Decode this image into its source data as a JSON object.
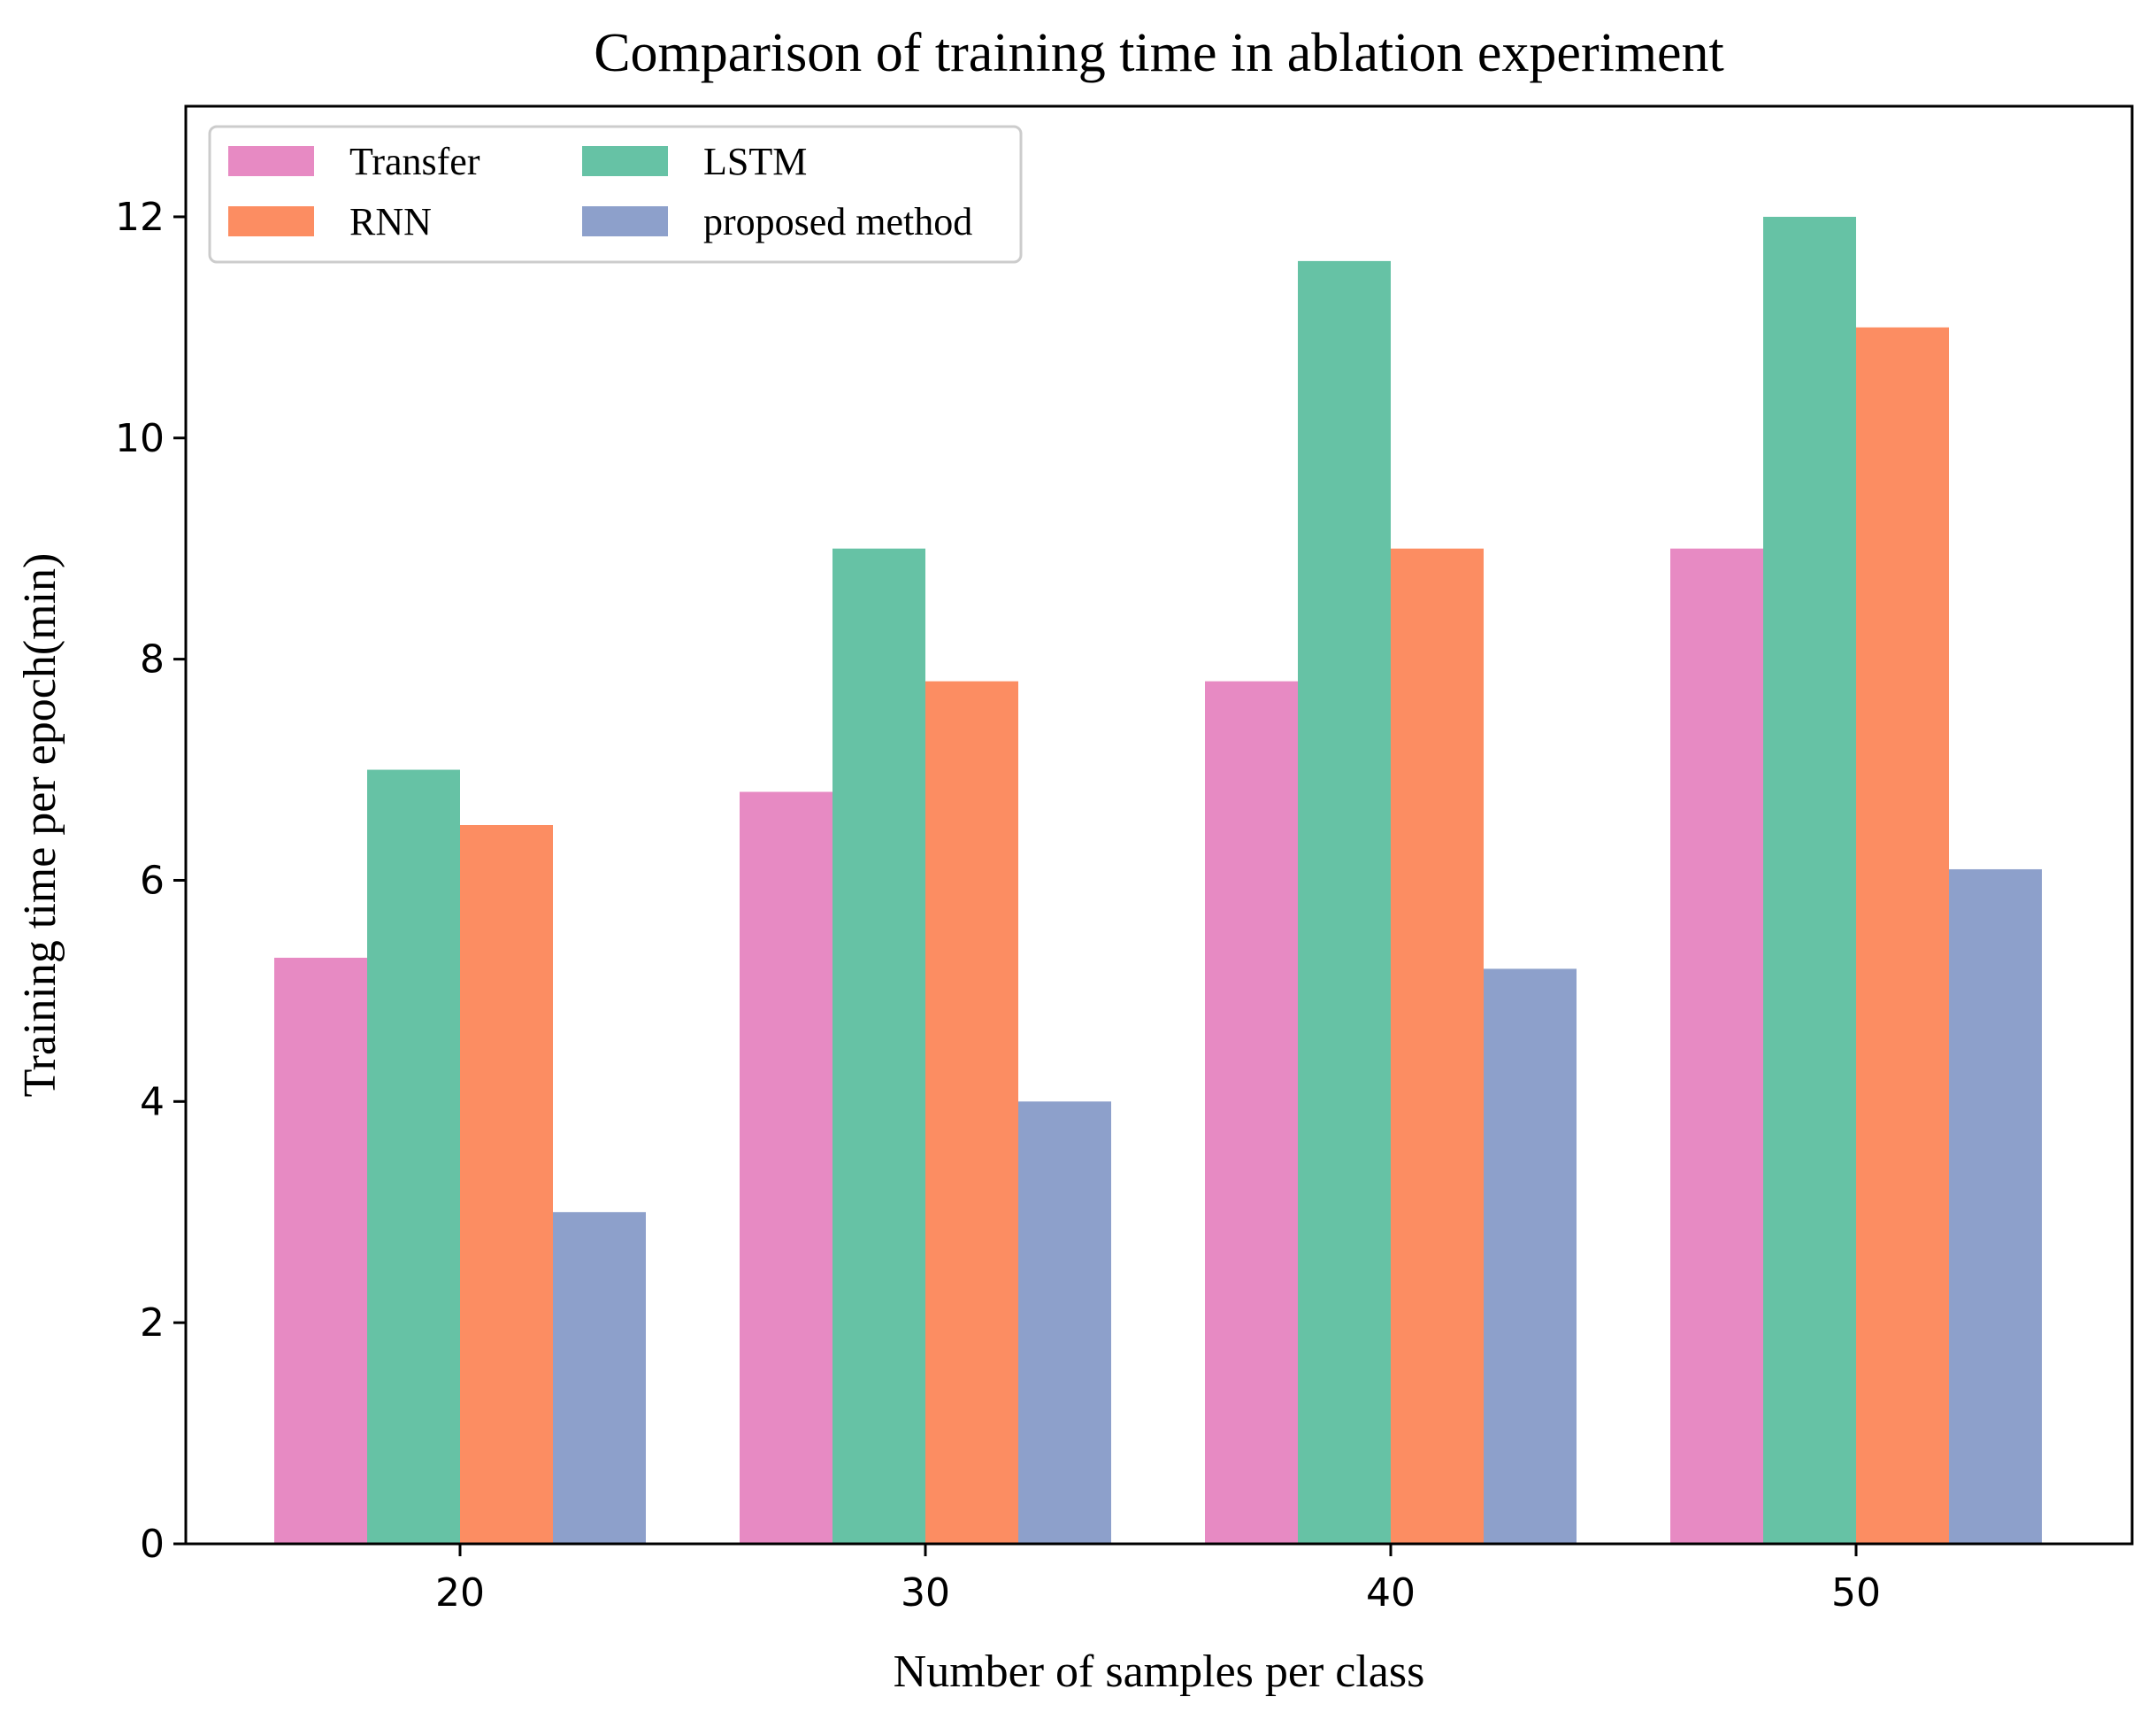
{
  "chart_data": {
    "type": "bar",
    "title": "Comparison of training time in ablation experiment",
    "xlabel": "Number of samples per class",
    "ylabel": "Training time per epoch(min)",
    "categories": [
      "20",
      "30",
      "40",
      "50"
    ],
    "ylim": [
      0,
      13
    ],
    "yticks": [
      0,
      2,
      4,
      6,
      8,
      10,
      12
    ],
    "grid": false,
    "legend_position": "top-left",
    "series": [
      {
        "name": "Transfer",
        "color": "#e78ac3",
        "values": [
          5.3,
          6.8,
          7.8,
          9.0
        ]
      },
      {
        "name": "LSTM",
        "color": "#66c2a5",
        "values": [
          7.0,
          9.0,
          11.6,
          12.0
        ]
      },
      {
        "name": "RNN",
        "color": "#fc8d62",
        "values": [
          6.5,
          7.8,
          9.0,
          11.0
        ]
      },
      {
        "name": "proposed method",
        "color": "#8da0cb",
        "values": [
          3.0,
          4.0,
          5.2,
          6.1
        ]
      }
    ]
  }
}
